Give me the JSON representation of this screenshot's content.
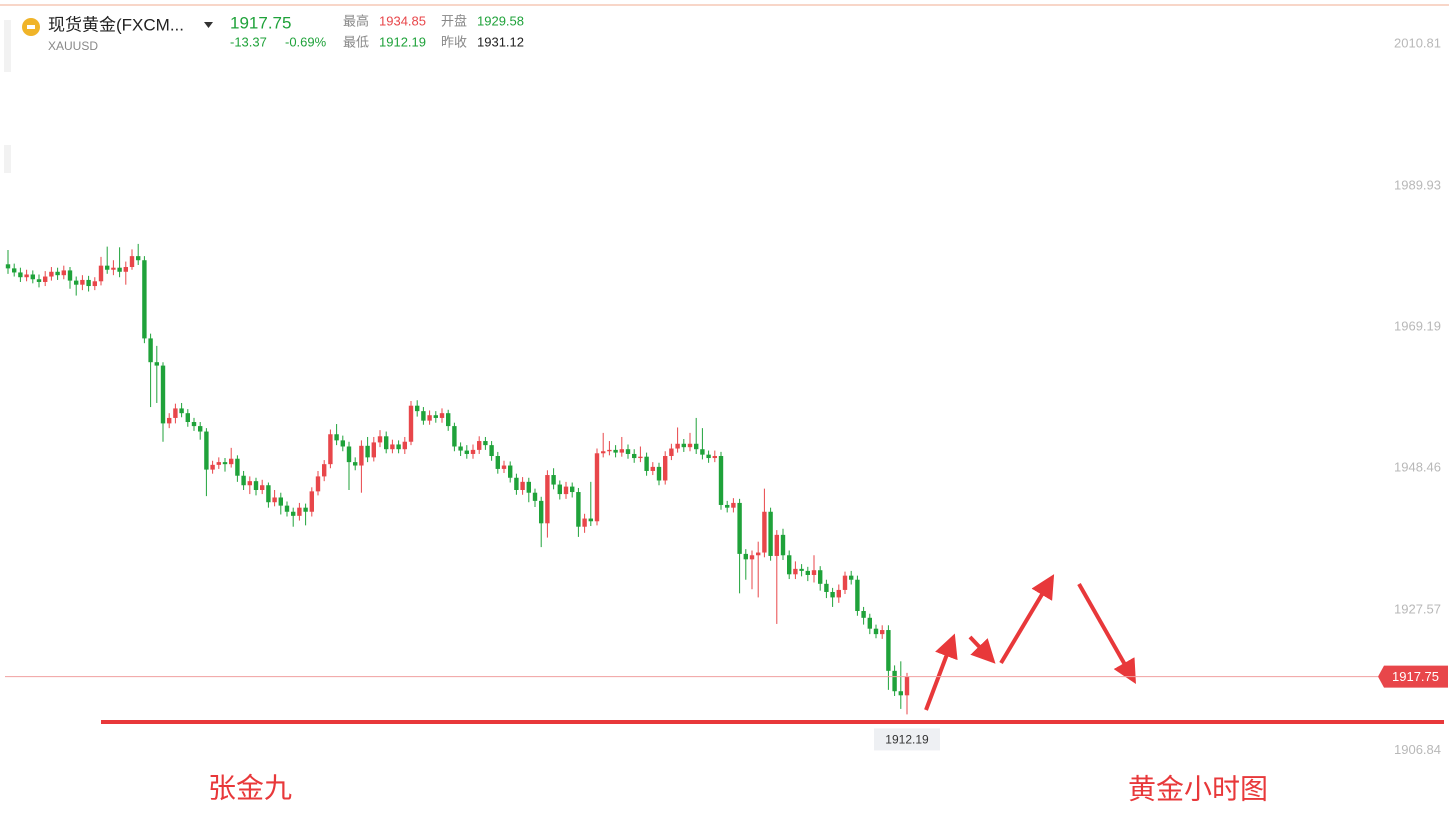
{
  "header": {
    "name": "现货黄金(FXCM...",
    "symbol": "XAUUSD",
    "last": "1917.75",
    "change": "-13.37",
    "change_pct": "-0.69%",
    "high_label": "最高",
    "high": "1934.85",
    "open_label": "开盘",
    "open": "1929.58",
    "low_label": "最低",
    "low": "1912.19",
    "prev_close_label": "昨收",
    "prev_close": "1931.12"
  },
  "chart_data": {
    "type": "candlestick",
    "open": [
      1978.4,
      1977.8,
      1977.2,
      1976.5,
      1976.9,
      1976.2,
      1975.8,
      1976.6,
      1977.3,
      1976.8,
      1977.5,
      1976.0,
      1975.4,
      1976.1,
      1975.2,
      1975.9,
      1978.2,
      1977.6,
      1977.9,
      1977.3,
      1978.0,
      1979.6,
      1979.0,
      1967.5,
      1964.0,
      1963.5,
      1955.0,
      1955.8,
      1957.2,
      1956.5,
      1955.2,
      1954.6,
      1953.8,
      1948.2,
      1948.9,
      1949.3,
      1949.0,
      1949.8,
      1947.3,
      1945.9,
      1946.5,
      1945.2,
      1945.9,
      1943.4,
      1944.1,
      1942.9,
      1942.0,
      1941.4,
      1942.6,
      1942.0,
      1945.0,
      1947.2,
      1949.0,
      1953.4,
      1952.5,
      1951.6,
      1949.3,
      1948.8,
      1951.7,
      1950.0,
      1952.2,
      1953.1,
      1951.2,
      1951.9,
      1951.2,
      1952.3,
      1957.6,
      1956.8,
      1955.4,
      1956.2,
      1955.8,
      1956.5,
      1954.6,
      1951.6,
      1951.0,
      1950.5,
      1951.1,
      1952.4,
      1951.8,
      1950.2,
      1948.3,
      1948.8,
      1947.0,
      1945.2,
      1946.4,
      1944.8,
      1943.6,
      1940.3,
      1947.4,
      1946.0,
      1944.6,
      1945.7,
      1944.9,
      1939.8,
      1941.0,
      1940.6,
      1950.6,
      1950.9,
      1951.1,
      1950.7,
      1951.2,
      1950.5,
      1949.9,
      1950.1,
      1948.0,
      1948.6,
      1946.6,
      1950.2,
      1951.3,
      1952.0,
      1951.5,
      1952.0,
      1951.2,
      1950.4,
      1949.9,
      1950.2,
      1943.0,
      1942.6,
      1943.3,
      1935.8,
      1935.0,
      1935.6,
      1936.0,
      1942.0,
      1935.5,
      1938.6,
      1935.6,
      1932.8,
      1933.6,
      1933.3,
      1932.7,
      1933.4,
      1931.4,
      1930.2,
      1929.4,
      1930.5,
      1932.6,
      1932.0,
      1927.4,
      1926.4,
      1924.8,
      1924.0,
      1924.6,
      1918.6,
      1915.6,
      1915.0
    ],
    "high": [
      1980.5,
      1978.5,
      1977.9,
      1977.6,
      1977.5,
      1976.9,
      1977.4,
      1978.0,
      1977.9,
      1978.2,
      1978.0,
      1976.6,
      1976.8,
      1976.7,
      1976.5,
      1979.5,
      1981.0,
      1979.0,
      1980.9,
      1978.8,
      1980.6,
      1981.4,
      1979.6,
      1968.2,
      1966.4,
      1964.0,
      1956.5,
      1957.9,
      1958.0,
      1957.1,
      1955.8,
      1955.2,
      1954.3,
      1949.5,
      1950.0,
      1949.9,
      1951.4,
      1950.3,
      1948.0,
      1947.2,
      1947.0,
      1946.7,
      1946.3,
      1945.2,
      1944.8,
      1943.5,
      1942.6,
      1943.3,
      1943.2,
      1945.6,
      1948.0,
      1949.6,
      1954.1,
      1954.9,
      1953.2,
      1952.3,
      1950.0,
      1952.5,
      1953.0,
      1953.0,
      1954.0,
      1953.8,
      1952.6,
      1952.5,
      1953.0,
      1958.3,
      1958.4,
      1957.4,
      1956.9,
      1956.8,
      1957.2,
      1957.0,
      1955.1,
      1952.2,
      1951.8,
      1951.9,
      1953.1,
      1953.0,
      1952.4,
      1950.8,
      1949.5,
      1949.4,
      1947.6,
      1947.1,
      1947.0,
      1945.4,
      1944.2,
      1948.1,
      1948.4,
      1946.6,
      1946.4,
      1946.3,
      1945.5,
      1941.7,
      1946.4,
      1951.3,
      1953.6,
      1952.4,
      1951.8,
      1953.0,
      1951.9,
      1951.2,
      1951.6,
      1950.7,
      1949.3,
      1949.2,
      1950.9,
      1952.0,
      1954.4,
      1952.7,
      1953.6,
      1955.8,
      1954.3,
      1951.0,
      1951.0,
      1950.8,
      1943.6,
      1944.0,
      1943.9,
      1936.5,
      1936.3,
      1937.6,
      1945.4,
      1942.6,
      1939.3,
      1939.5,
      1936.3,
      1934.7,
      1934.3,
      1933.9,
      1935.6,
      1934.0,
      1932.0,
      1930.8,
      1931.3,
      1933.2,
      1933.3,
      1932.6,
      1928.0,
      1927.0,
      1925.4,
      1925.3,
      1925.3,
      1919.4,
      1920.0,
      1918.3
    ],
    "low": [
      1977.0,
      1976.6,
      1975.8,
      1975.9,
      1975.6,
      1975.0,
      1975.2,
      1976.0,
      1976.1,
      1976.2,
      1974.8,
      1973.8,
      1974.6,
      1974.4,
      1974.6,
      1975.3,
      1977.0,
      1976.8,
      1976.5,
      1975.4,
      1977.6,
      1978.3,
      1966.8,
      1957.4,
      1958.0,
      1952.3,
      1954.3,
      1955.0,
      1955.9,
      1954.5,
      1953.9,
      1952.6,
      1944.3,
      1947.6,
      1948.3,
      1947.9,
      1948.5,
      1946.4,
      1945.2,
      1944.6,
      1944.4,
      1944.6,
      1942.6,
      1942.8,
      1941.6,
      1941.3,
      1939.8,
      1940.7,
      1940.0,
      1941.3,
      1944.4,
      1946.5,
      1948.4,
      1951.8,
      1950.9,
      1945.2,
      1948.1,
      1944.8,
      1949.3,
      1949.4,
      1951.5,
      1950.6,
      1950.6,
      1950.6,
      1950.5,
      1951.8,
      1956.0,
      1954.8,
      1954.8,
      1955.1,
      1955.1,
      1953.9,
      1950.9,
      1950.2,
      1949.8,
      1949.8,
      1950.5,
      1951.1,
      1949.5,
      1947.6,
      1947.7,
      1946.3,
      1944.5,
      1944.5,
      1943.4,
      1942.7,
      1936.8,
      1938.2,
      1945.3,
      1943.8,
      1943.9,
      1944.1,
      1938.3,
      1938.9,
      1939.9,
      1940.0,
      1950.0,
      1950.3,
      1950.0,
      1950.1,
      1949.8,
      1949.2,
      1949.3,
      1947.3,
      1947.4,
      1945.9,
      1946.0,
      1949.6,
      1950.7,
      1950.8,
      1950.9,
      1950.5,
      1949.7,
      1949.2,
      1949.3,
      1942.3,
      1941.9,
      1941.9,
      1930.0,
      1932.0,
      1930.6,
      1929.4,
      1935.3,
      1934.8,
      1925.5,
      1934.9,
      1932.1,
      1932.1,
      1932.5,
      1931.8,
      1931.6,
      1930.4,
      1929.3,
      1928.0,
      1928.6,
      1929.9,
      1931.3,
      1926.7,
      1925.4,
      1924.0,
      1923.4,
      1923.3,
      1915.8,
      1914.9,
      1913.0,
      1912.19
    ],
    "close": [
      1977.8,
      1977.2,
      1976.5,
      1976.9,
      1976.2,
      1975.8,
      1976.6,
      1977.3,
      1976.8,
      1977.5,
      1976.0,
      1975.4,
      1976.1,
      1975.2,
      1975.9,
      1978.2,
      1977.6,
      1977.9,
      1977.3,
      1978.0,
      1979.6,
      1979.0,
      1967.5,
      1964.0,
      1963.5,
      1955.0,
      1955.8,
      1957.2,
      1956.5,
      1955.2,
      1954.6,
      1953.8,
      1948.2,
      1948.9,
      1949.3,
      1949.0,
      1949.8,
      1947.3,
      1945.9,
      1946.5,
      1945.2,
      1945.9,
      1943.4,
      1944.1,
      1942.9,
      1942.0,
      1941.4,
      1942.6,
      1942.0,
      1945.0,
      1947.2,
      1949.0,
      1953.4,
      1952.5,
      1951.6,
      1949.3,
      1948.8,
      1951.7,
      1950.0,
      1952.2,
      1953.1,
      1951.2,
      1951.9,
      1951.2,
      1952.3,
      1957.6,
      1956.8,
      1955.4,
      1956.2,
      1955.8,
      1956.5,
      1954.6,
      1951.6,
      1951.0,
      1950.5,
      1951.1,
      1952.4,
      1951.8,
      1950.2,
      1948.3,
      1948.8,
      1947.0,
      1945.2,
      1946.4,
      1944.8,
      1943.6,
      1940.3,
      1947.4,
      1946.0,
      1944.6,
      1945.7,
      1944.9,
      1939.8,
      1941.0,
      1940.6,
      1950.6,
      1950.9,
      1951.1,
      1950.7,
      1951.2,
      1950.5,
      1949.9,
      1950.1,
      1948.0,
      1948.6,
      1946.6,
      1950.2,
      1951.3,
      1952.0,
      1951.5,
      1952.0,
      1951.2,
      1950.4,
      1949.9,
      1950.2,
      1943.0,
      1942.6,
      1943.3,
      1935.8,
      1935.0,
      1935.6,
      1936.0,
      1942.0,
      1935.5,
      1938.6,
      1935.6,
      1932.8,
      1933.6,
      1933.3,
      1932.7,
      1933.4,
      1931.4,
      1930.2,
      1929.4,
      1930.5,
      1932.6,
      1932.0,
      1927.4,
      1926.4,
      1924.8,
      1924.0,
      1924.6,
      1918.6,
      1915.6,
      1915.0,
      1917.75
    ],
    "up_color": "#e8464a",
    "down_color": "#1fa23a",
    "ylim": [
      1899.6,
      2016.1
    ],
    "yticks": [
      1906.84,
      1927.57,
      1948.46,
      1969.19,
      1989.93,
      2010.81
    ],
    "grid": false,
    "last_price": 1917.75,
    "low_marker": 1912.19,
    "annotations": [
      "张金九",
      "黄金小时图"
    ]
  }
}
